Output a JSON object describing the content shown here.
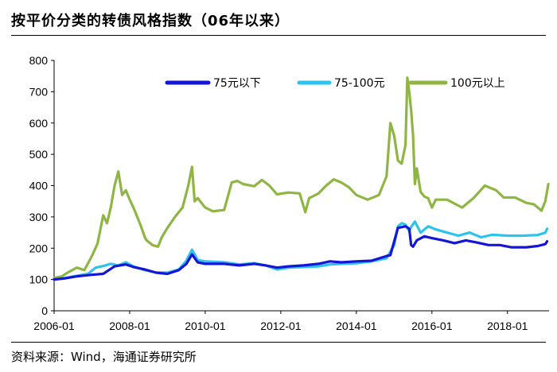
{
  "header": {
    "title": "按平价分类的转债风格指数（06年以来）"
  },
  "footer": {
    "source": "资料来源：Wind，海通证券研究所"
  },
  "colors": {
    "low": "#1515d8",
    "mid": "#2ec2ee",
    "high": "#8fb645"
  },
  "chart_data": {
    "type": "line",
    "title": "",
    "xlabel": "",
    "ylabel": "",
    "xlim": [
      2006.0,
      2019.1
    ],
    "ylim": [
      0,
      800
    ],
    "yticks": [
      0,
      100,
      200,
      300,
      400,
      500,
      600,
      700,
      800
    ],
    "xticks": [
      {
        "label": "2006-01",
        "value": 2006.0
      },
      {
        "label": "2008-01",
        "value": 2008.0
      },
      {
        "label": "2010-01",
        "value": 2010.0
      },
      {
        "label": "2012-01",
        "value": 2012.0
      },
      {
        "label": "2014-01",
        "value": 2014.0
      },
      {
        "label": "2016-01",
        "value": 2016.0
      },
      {
        "label": "2018-01",
        "value": 2018.0
      }
    ],
    "grid": false,
    "legend_position": "top-right",
    "series": [
      {
        "name": "75元以下",
        "color": "#1515d8",
        "points": [
          [
            2006.0,
            100
          ],
          [
            2006.3,
            104
          ],
          [
            2006.6,
            110
          ],
          [
            2007.0,
            115
          ],
          [
            2007.3,
            118
          ],
          [
            2007.6,
            142
          ],
          [
            2007.9,
            148
          ],
          [
            2008.1,
            140
          ],
          [
            2008.4,
            132
          ],
          [
            2008.7,
            122
          ],
          [
            2009.0,
            118
          ],
          [
            2009.3,
            130
          ],
          [
            2009.5,
            150
          ],
          [
            2009.65,
            180
          ],
          [
            2009.8,
            155
          ],
          [
            2010.0,
            150
          ],
          [
            2010.5,
            150
          ],
          [
            2010.9,
            145
          ],
          [
            2011.3,
            150
          ],
          [
            2011.6,
            145
          ],
          [
            2011.9,
            138
          ],
          [
            2012.2,
            142
          ],
          [
            2012.6,
            145
          ],
          [
            2013.0,
            150
          ],
          [
            2013.3,
            158
          ],
          [
            2013.6,
            155
          ],
          [
            2014.0,
            158
          ],
          [
            2014.4,
            160
          ],
          [
            2014.8,
            175
          ],
          [
            2014.9,
            178
          ],
          [
            2015.1,
            265
          ],
          [
            2015.3,
            270
          ],
          [
            2015.4,
            262
          ],
          [
            2015.45,
            210
          ],
          [
            2015.5,
            205
          ],
          [
            2015.6,
            225
          ],
          [
            2015.8,
            238
          ],
          [
            2016.0,
            232
          ],
          [
            2016.3,
            225
          ],
          [
            2016.6,
            216
          ],
          [
            2016.9,
            225
          ],
          [
            2017.2,
            218
          ],
          [
            2017.5,
            210
          ],
          [
            2017.8,
            210
          ],
          [
            2018.1,
            203
          ],
          [
            2018.5,
            203
          ],
          [
            2018.8,
            207
          ],
          [
            2019.0,
            213
          ],
          [
            2019.05,
            222
          ]
        ]
      },
      {
        "name": "75-100元",
        "color": "#2ec2ee",
        "points": [
          [
            2006.0,
            100
          ],
          [
            2006.3,
            105
          ],
          [
            2006.6,
            112
          ],
          [
            2006.9,
            118
          ],
          [
            2007.1,
            138
          ],
          [
            2007.3,
            143
          ],
          [
            2007.5,
            150
          ],
          [
            2007.7,
            145
          ],
          [
            2007.9,
            155
          ],
          [
            2008.1,
            142
          ],
          [
            2008.4,
            130
          ],
          [
            2008.7,
            122
          ],
          [
            2009.0,
            122
          ],
          [
            2009.3,
            132
          ],
          [
            2009.5,
            160
          ],
          [
            2009.65,
            195
          ],
          [
            2009.8,
            162
          ],
          [
            2010.0,
            158
          ],
          [
            2010.5,
            155
          ],
          [
            2010.9,
            148
          ],
          [
            2011.3,
            152
          ],
          [
            2011.6,
            145
          ],
          [
            2011.9,
            132
          ],
          [
            2012.2,
            138
          ],
          [
            2012.6,
            140
          ],
          [
            2013.0,
            142
          ],
          [
            2013.3,
            148
          ],
          [
            2013.6,
            150
          ],
          [
            2014.0,
            152
          ],
          [
            2014.4,
            158
          ],
          [
            2014.8,
            168
          ],
          [
            2015.0,
            210
          ],
          [
            2015.1,
            270
          ],
          [
            2015.2,
            280
          ],
          [
            2015.3,
            275
          ],
          [
            2015.4,
            255
          ],
          [
            2015.45,
            268
          ],
          [
            2015.55,
            285
          ],
          [
            2015.7,
            250
          ],
          [
            2015.9,
            270
          ],
          [
            2016.1,
            260
          ],
          [
            2016.4,
            250
          ],
          [
            2016.7,
            240
          ],
          [
            2017.0,
            250
          ],
          [
            2017.3,
            235
          ],
          [
            2017.6,
            243
          ],
          [
            2018.0,
            240
          ],
          [
            2018.4,
            240
          ],
          [
            2018.8,
            242
          ],
          [
            2019.0,
            250
          ],
          [
            2019.05,
            262
          ]
        ]
      },
      {
        "name": "100元以上",
        "color": "#8fb645",
        "points": [
          [
            2006.0,
            105
          ],
          [
            2006.2,
            110
          ],
          [
            2006.4,
            125
          ],
          [
            2006.6,
            138
          ],
          [
            2006.8,
            130
          ],
          [
            2007.0,
            175
          ],
          [
            2007.15,
            215
          ],
          [
            2007.3,
            305
          ],
          [
            2007.4,
            280
          ],
          [
            2007.5,
            330
          ],
          [
            2007.6,
            400
          ],
          [
            2007.7,
            445
          ],
          [
            2007.8,
            370
          ],
          [
            2007.9,
            385
          ],
          [
            2008.0,
            355
          ],
          [
            2008.1,
            330
          ],
          [
            2008.2,
            300
          ],
          [
            2008.3,
            270
          ],
          [
            2008.4,
            235
          ],
          [
            2008.45,
            225
          ],
          [
            2008.6,
            210
          ],
          [
            2008.75,
            205
          ],
          [
            2008.85,
            235
          ],
          [
            2009.0,
            265
          ],
          [
            2009.2,
            300
          ],
          [
            2009.4,
            330
          ],
          [
            2009.55,
            400
          ],
          [
            2009.65,
            460
          ],
          [
            2009.72,
            350
          ],
          [
            2009.8,
            360
          ],
          [
            2010.0,
            330
          ],
          [
            2010.2,
            318
          ],
          [
            2010.5,
            322
          ],
          [
            2010.7,
            410
          ],
          [
            2010.85,
            415
          ],
          [
            2011.0,
            405
          ],
          [
            2011.3,
            398
          ],
          [
            2011.5,
            418
          ],
          [
            2011.7,
            400
          ],
          [
            2011.9,
            372
          ],
          [
            2012.2,
            378
          ],
          [
            2012.5,
            375
          ],
          [
            2012.65,
            315
          ],
          [
            2012.75,
            360
          ],
          [
            2013.0,
            375
          ],
          [
            2013.2,
            400
          ],
          [
            2013.4,
            420
          ],
          [
            2013.6,
            410
          ],
          [
            2013.8,
            395
          ],
          [
            2014.0,
            370
          ],
          [
            2014.3,
            355
          ],
          [
            2014.6,
            370
          ],
          [
            2014.8,
            430
          ],
          [
            2014.9,
            600
          ],
          [
            2015.0,
            560
          ],
          [
            2015.1,
            480
          ],
          [
            2015.2,
            470
          ],
          [
            2015.3,
            530
          ],
          [
            2015.35,
            745
          ],
          [
            2015.4,
            700
          ],
          [
            2015.45,
            640
          ],
          [
            2015.5,
            560
          ],
          [
            2015.55,
            405
          ],
          [
            2015.6,
            455
          ],
          [
            2015.7,
            380
          ],
          [
            2015.8,
            365
          ],
          [
            2015.9,
            360
          ],
          [
            2016.0,
            330
          ],
          [
            2016.1,
            355
          ],
          [
            2016.4,
            355
          ],
          [
            2016.8,
            330
          ],
          [
            2017.1,
            360
          ],
          [
            2017.4,
            400
          ],
          [
            2017.7,
            385
          ],
          [
            2017.9,
            362
          ],
          [
            2018.2,
            362
          ],
          [
            2018.5,
            345
          ],
          [
            2018.7,
            340
          ],
          [
            2018.9,
            320
          ],
          [
            2019.0,
            350
          ],
          [
            2019.08,
            405
          ]
        ]
      }
    ]
  }
}
